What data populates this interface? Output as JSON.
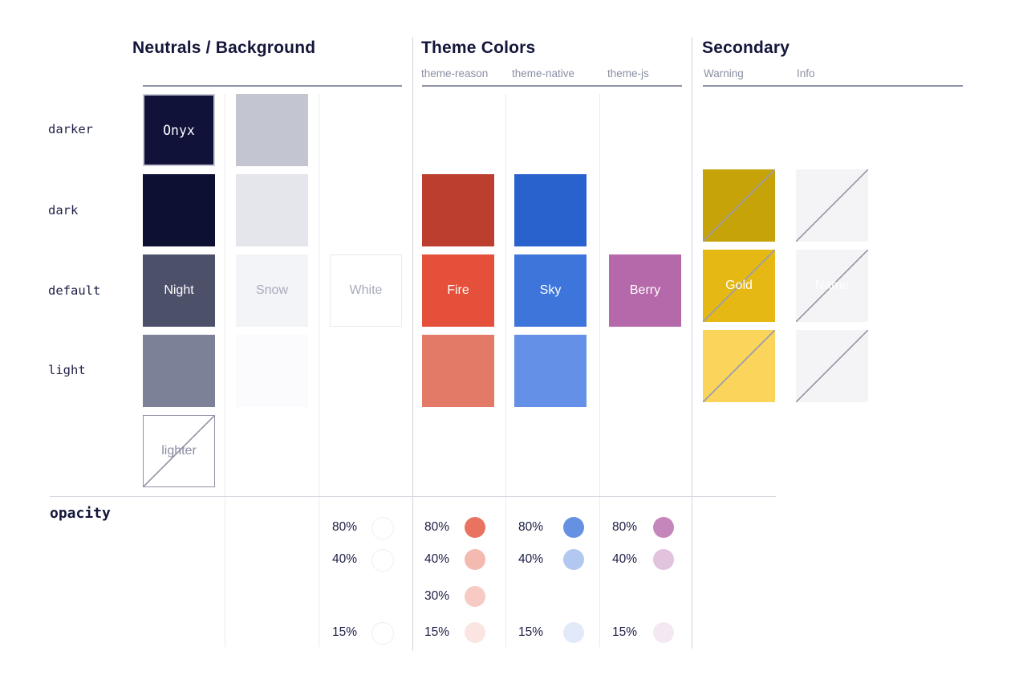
{
  "sections": {
    "neutrals": {
      "title": "Neutrals / Background"
    },
    "theme": {
      "title": "Theme Colors",
      "columns": [
        "theme-reason",
        "theme-native",
        "theme-js"
      ]
    },
    "secondary": {
      "title": "Secondary",
      "columns": [
        "Warning",
        "Info"
      ]
    }
  },
  "row_labels": [
    "darker",
    "dark",
    "default",
    "light"
  ],
  "swatches": [
    {
      "name": "onyx",
      "col": "c1",
      "row": "darker",
      "color": "#10123A",
      "label": "Onyx",
      "label_color": "#FFFFFF",
      "border": "#C7C9D5",
      "border_width": 2,
      "mono": true
    },
    {
      "name": "neutral-dark",
      "col": "c1",
      "row": "dark",
      "color": "#0D0F33"
    },
    {
      "name": "night",
      "col": "c1",
      "row": "default",
      "color": "#4D5069",
      "label": "Night",
      "label_color": "#FFFFFF"
    },
    {
      "name": "neutral-light",
      "col": "c1",
      "row": "light",
      "color": "#7D8197"
    },
    {
      "name": "lighter",
      "col": "c1",
      "row": "lighter",
      "color": "#FFFFFF",
      "label": "lighter",
      "label_color": "#8A8CA2",
      "border": "#9092A8",
      "border_width": 1,
      "crossed": true
    },
    {
      "name": "bg-darker",
      "col": "c2",
      "row": "darker",
      "color": "#C3C6D1"
    },
    {
      "name": "bg-dark",
      "col": "c2",
      "row": "dark",
      "color": "#E5E6EB"
    },
    {
      "name": "snow",
      "col": "c2",
      "row": "default",
      "color": "#F3F4F7",
      "label": "Snow",
      "label_color": "#A7AABB"
    },
    {
      "name": "bg-light",
      "col": "c2",
      "row": "light",
      "color": "#FBFBFD"
    },
    {
      "name": "white",
      "col": "c3",
      "row": "default",
      "color": "#FFFFFF",
      "label": "White",
      "label_color": "#A7AABB",
      "border": "#E9E9F0",
      "border_width": 1
    },
    {
      "name": "fire-dark",
      "col": "tr",
      "row": "dark",
      "color": "#BC3E2E"
    },
    {
      "name": "fire",
      "col": "tr",
      "row": "default",
      "color": "#E4503A",
      "label": "Fire",
      "label_color": "#FFFFFF"
    },
    {
      "name": "fire-light",
      "col": "tr",
      "row": "light",
      "color": "#E37A68"
    },
    {
      "name": "sky-dark",
      "col": "tn",
      "row": "dark",
      "color": "#2A62CD"
    },
    {
      "name": "sky",
      "col": "tn",
      "row": "default",
      "color": "#3E75DB",
      "label": "Sky",
      "label_color": "#FFFFFF"
    },
    {
      "name": "sky-light",
      "col": "tn",
      "row": "light",
      "color": "#6490E7"
    },
    {
      "name": "berry",
      "col": "tj",
      "row": "default",
      "color": "#B669AA",
      "label": "Berry",
      "label_color": "#FFFFFF"
    },
    {
      "name": "warning-dark",
      "col": "sw",
      "row": "dark",
      "color": "#C6A308",
      "crossed": true
    },
    {
      "name": "gold",
      "col": "sw",
      "row": "default",
      "color": "#E5B813",
      "label": "Gold",
      "label_color": "#FFFFFF",
      "crossed": true
    },
    {
      "name": "warning-light",
      "col": "sw",
      "row": "light",
      "color": "#FBD45C",
      "crossed": true
    },
    {
      "name": "info-dark",
      "col": "si",
      "row": "dark",
      "color": "#F4F4F6",
      "crossed": true
    },
    {
      "name": "info-default",
      "col": "si",
      "row": "default",
      "color": "#F4F4F6",
      "label": "Name",
      "label_color": "#FDFDFE",
      "crossed": true
    },
    {
      "name": "info-light",
      "col": "si",
      "row": "light",
      "color": "#F4F4F6",
      "crossed": true
    }
  ],
  "opacity": {
    "label": "opacity",
    "columns": [
      {
        "name": "white",
        "color": "#FFFFFF",
        "outlined": true,
        "stops": [
          {
            "pct": "80%",
            "opacity": 0.8,
            "row": 0
          },
          {
            "pct": "40%",
            "opacity": 0.4,
            "row": 1
          },
          {
            "pct": "15%",
            "opacity": 0.15,
            "row": 3
          }
        ]
      },
      {
        "name": "fire",
        "color": "#E4503A",
        "stops": [
          {
            "pct": "80%",
            "opacity": 0.8,
            "row": 0
          },
          {
            "pct": "40%",
            "opacity": 0.4,
            "row": 1
          },
          {
            "pct": "30%",
            "opacity": 0.3,
            "row": 2
          },
          {
            "pct": "15%",
            "opacity": 0.15,
            "row": 3
          }
        ]
      },
      {
        "name": "sky",
        "color": "#3E75DB",
        "stops": [
          {
            "pct": "80%",
            "opacity": 0.8,
            "row": 0
          },
          {
            "pct": "40%",
            "opacity": 0.4,
            "row": 1
          },
          {
            "pct": "15%",
            "opacity": 0.15,
            "row": 3
          }
        ]
      },
      {
        "name": "berry",
        "color": "#B669AA",
        "stops": [
          {
            "pct": "80%",
            "opacity": 0.8,
            "row": 0
          },
          {
            "pct": "40%",
            "opacity": 0.4,
            "row": 1
          },
          {
            "pct": "15%",
            "opacity": 0.15,
            "row": 3
          }
        ]
      }
    ]
  }
}
